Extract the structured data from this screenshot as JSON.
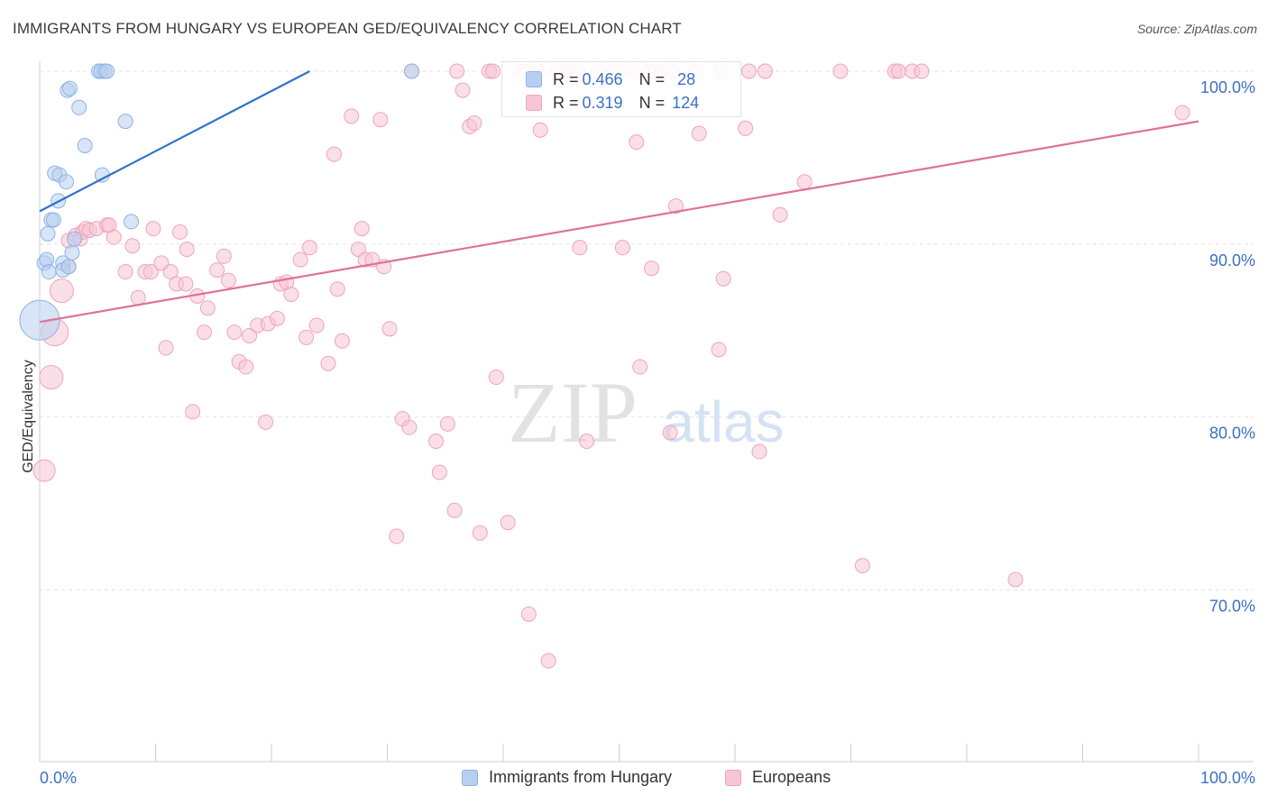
{
  "title": "IMMIGRANTS FROM HUNGARY VS EUROPEAN GED/EQUIVALENCY CORRELATION CHART",
  "source": "Source: ZipAtlas.com",
  "watermark": {
    "zip": "ZIP",
    "atlas": "atlas"
  },
  "colors": {
    "blue_fill": "#b7d0f1",
    "blue_stroke": "#8fb2e3",
    "blue_line": "#2f72c9",
    "pink_fill": "#f8c5d4",
    "pink_stroke": "#eea4bb",
    "pink_line": "#e0709a",
    "tick_label": "#3b70c4",
    "grid": "#e3e3e3"
  },
  "legend": {
    "hungary": "Immigrants from Hungary",
    "europeans": "Europeans"
  },
  "stats": {
    "hungary": {
      "r_label": "R = ",
      "r_value": "0.466",
      "n_label": "N = ",
      "n_value": "28"
    },
    "europeans": {
      "r_label": "R = ",
      "r_value": "0.319",
      "n_label": "N = ",
      "n_value": "124"
    }
  },
  "chart_data": {
    "type": "scatter",
    "ylabel": "GED/Equivalency",
    "xlabel": "",
    "xlim": [
      0,
      100
    ],
    "ylim": [
      60.5,
      101.5
    ],
    "x_tick_labels": [
      "0.0%",
      "100.0%"
    ],
    "y_ticks": [
      70,
      80,
      90,
      100
    ],
    "y_tick_labels": [
      "70.0%",
      "80.0%",
      "90.0%",
      "100.0%"
    ],
    "grid": true,
    "legend_position": "bottom-center",
    "series": [
      {
        "name": "Immigrants from Hungary",
        "color": "blue",
        "trend": {
          "x": [
            0,
            23.3
          ],
          "y": [
            91.9,
            100
          ]
        },
        "points": [
          [
            0.0,
            85.6,
            22
          ],
          [
            0.4,
            88.9,
            8
          ],
          [
            0.6,
            89.1,
            8
          ],
          [
            0.7,
            90.6,
            8
          ],
          [
            0.8,
            88.4,
            8
          ],
          [
            1.0,
            91.4,
            8
          ],
          [
            1.2,
            91.4,
            8
          ],
          [
            1.3,
            94.1,
            8
          ],
          [
            1.6,
            92.5,
            8
          ],
          [
            1.7,
            94.0,
            8
          ],
          [
            2.0,
            88.9,
            8
          ],
          [
            2.0,
            88.5,
            8
          ],
          [
            2.3,
            93.6,
            8
          ],
          [
            2.4,
            98.9,
            8
          ],
          [
            2.5,
            88.7,
            8
          ],
          [
            2.6,
            99.0,
            8
          ],
          [
            2.8,
            89.5,
            8
          ],
          [
            3.0,
            90.3,
            8
          ],
          [
            3.4,
            97.9,
            8
          ],
          [
            3.9,
            95.7,
            8
          ],
          [
            5.1,
            100.0,
            8
          ],
          [
            5.3,
            100.0,
            8
          ],
          [
            5.4,
            94.0,
            8
          ],
          [
            5.6,
            100.0,
            8
          ],
          [
            5.8,
            100.0,
            8
          ],
          [
            7.4,
            97.1,
            8
          ],
          [
            7.9,
            91.3,
            8
          ],
          [
            32.1,
            100.0,
            8
          ]
        ]
      },
      {
        "name": "Europeans",
        "color": "pink",
        "trend": {
          "x": [
            0,
            100
          ],
          "y": [
            85.5,
            97.1
          ]
        },
        "points": [
          [
            0.4,
            76.9,
            12
          ],
          [
            1.0,
            82.3,
            13
          ],
          [
            1.3,
            84.9,
            15
          ],
          [
            1.9,
            87.3,
            13
          ],
          [
            2.5,
            90.2,
            8
          ],
          [
            2.5,
            88.7,
            8
          ],
          [
            3.1,
            90.5,
            8
          ],
          [
            3.5,
            90.3,
            8
          ],
          [
            3.7,
            90.7,
            8
          ],
          [
            4.0,
            90.9,
            8
          ],
          [
            4.3,
            90.8,
            8
          ],
          [
            4.9,
            90.9,
            8
          ],
          [
            5.8,
            91.1,
            8
          ],
          [
            6.0,
            91.1,
            8
          ],
          [
            6.4,
            90.4,
            8
          ],
          [
            7.4,
            88.4,
            8
          ],
          [
            8.0,
            89.9,
            8
          ],
          [
            8.5,
            86.9,
            8
          ],
          [
            9.1,
            88.4,
            8
          ],
          [
            9.6,
            88.4,
            8
          ],
          [
            9.8,
            90.9,
            8
          ],
          [
            10.5,
            88.9,
            8
          ],
          [
            10.9,
            84.0,
            8
          ],
          [
            11.3,
            88.4,
            8
          ],
          [
            11.8,
            87.7,
            8
          ],
          [
            12.1,
            90.7,
            8
          ],
          [
            12.6,
            87.7,
            8
          ],
          [
            12.7,
            89.7,
            8
          ],
          [
            13.2,
            80.3,
            8
          ],
          [
            13.6,
            87.0,
            8
          ],
          [
            14.2,
            84.9,
            8
          ],
          [
            14.5,
            86.3,
            8
          ],
          [
            15.3,
            88.5,
            8
          ],
          [
            15.9,
            89.3,
            8
          ],
          [
            16.3,
            87.9,
            8
          ],
          [
            16.8,
            84.9,
            8
          ],
          [
            17.2,
            83.2,
            8
          ],
          [
            17.8,
            82.9,
            8
          ],
          [
            18.1,
            84.7,
            8
          ],
          [
            18.8,
            85.3,
            8
          ],
          [
            19.5,
            79.7,
            8
          ],
          [
            19.7,
            85.4,
            8
          ],
          [
            20.5,
            85.7,
            8
          ],
          [
            20.8,
            87.7,
            8
          ],
          [
            21.3,
            87.8,
            8
          ],
          [
            21.7,
            87.1,
            8
          ],
          [
            22.5,
            89.1,
            8
          ],
          [
            23.0,
            84.6,
            8
          ],
          [
            23.3,
            89.8,
            8
          ],
          [
            23.9,
            85.3,
            8
          ],
          [
            24.9,
            83.1,
            8
          ],
          [
            25.4,
            95.2,
            8
          ],
          [
            25.7,
            87.4,
            8
          ],
          [
            26.1,
            84.4,
            8
          ],
          [
            26.9,
            97.4,
            8
          ],
          [
            27.5,
            89.7,
            8
          ],
          [
            27.8,
            90.9,
            8
          ],
          [
            28.1,
            89.1,
            8
          ],
          [
            28.7,
            89.1,
            8
          ],
          [
            29.4,
            97.2,
            8
          ],
          [
            29.7,
            88.7,
            8
          ],
          [
            30.2,
            85.1,
            8
          ],
          [
            30.8,
            73.1,
            8
          ],
          [
            31.3,
            79.9,
            8
          ],
          [
            31.9,
            79.4,
            8
          ],
          [
            32.1,
            100.0,
            8
          ],
          [
            34.2,
            78.6,
            8
          ],
          [
            34.5,
            76.8,
            8
          ],
          [
            35.2,
            79.6,
            8
          ],
          [
            35.8,
            74.6,
            8
          ],
          [
            36.0,
            100.0,
            8
          ],
          [
            36.5,
            98.9,
            8
          ],
          [
            37.1,
            96.8,
            8
          ],
          [
            37.5,
            97.0,
            8
          ],
          [
            38.0,
            73.3,
            8
          ],
          [
            38.8,
            100.0,
            8
          ],
          [
            39.1,
            100.0,
            8
          ],
          [
            39.4,
            82.3,
            8
          ],
          [
            40.4,
            73.9,
            8
          ],
          [
            41.4,
            100.0,
            8
          ],
          [
            41.8,
            100.0,
            8
          ],
          [
            42.2,
            68.6,
            8
          ],
          [
            42.9,
            100.0,
            8
          ],
          [
            43.2,
            96.6,
            8
          ],
          [
            43.9,
            65.9,
            8
          ],
          [
            44.6,
            100.0,
            8
          ],
          [
            45.3,
            100.0,
            8
          ],
          [
            46.0,
            100.0,
            8
          ],
          [
            46.4,
            100.0,
            8
          ],
          [
            46.6,
            89.8,
            8
          ],
          [
            47.2,
            78.6,
            8
          ],
          [
            48.2,
            100.0,
            8
          ],
          [
            49.5,
            100.0,
            8
          ],
          [
            50.1,
            100.0,
            8
          ],
          [
            50.3,
            89.8,
            8
          ],
          [
            51.2,
            100.0,
            8
          ],
          [
            51.5,
            95.9,
            8
          ],
          [
            51.8,
            82.9,
            8
          ],
          [
            52.6,
            100.0,
            8
          ],
          [
            52.8,
            88.6,
            8
          ],
          [
            53.1,
            100.0,
            8
          ],
          [
            53.7,
            100.0,
            8
          ],
          [
            54.4,
            79.1,
            8
          ],
          [
            54.6,
            100.0,
            8
          ],
          [
            54.9,
            92.2,
            8
          ],
          [
            56.6,
            100.0,
            8
          ],
          [
            56.9,
            96.4,
            8
          ],
          [
            58.6,
            83.9,
            8
          ],
          [
            58.8,
            100.0,
            8
          ],
          [
            59.0,
            88.0,
            8
          ],
          [
            60.9,
            96.7,
            8
          ],
          [
            61.2,
            100.0,
            8
          ],
          [
            62.1,
            78.0,
            8
          ],
          [
            62.6,
            100.0,
            8
          ],
          [
            63.9,
            91.7,
            8
          ],
          [
            66.0,
            93.6,
            8
          ],
          [
            69.1,
            100.0,
            8
          ],
          [
            71.0,
            71.4,
            8
          ],
          [
            73.8,
            100.0,
            8
          ],
          [
            74.1,
            100.0,
            8
          ],
          [
            75.3,
            100.0,
            8
          ],
          [
            76.1,
            100.0,
            8
          ],
          [
            84.2,
            70.6,
            8
          ],
          [
            98.6,
            97.6,
            8
          ]
        ]
      }
    ]
  }
}
